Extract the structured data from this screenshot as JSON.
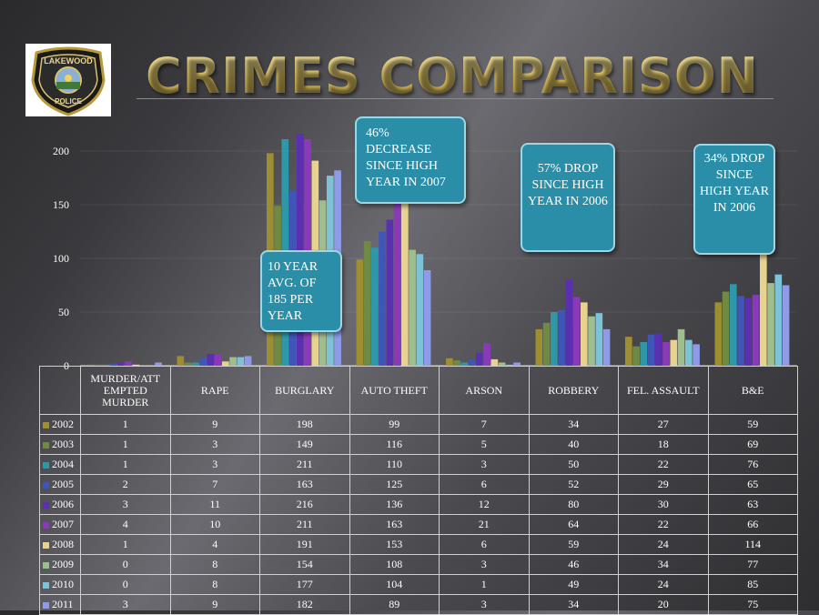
{
  "title": "CRIMES COMPARISON",
  "logo": {
    "top_text": "LAKEWOOD",
    "bottom_text": "POLICE"
  },
  "callouts": [
    "10 YEAR AVG. OF 185 PER YEAR",
    "46% DECREASE SINCE HIGH YEAR IN 2007",
    "57% DROP SINCE HIGH YEAR IN 2006",
    "34% DROP SINCE HIGH YEAR IN 2006"
  ],
  "chart_data": {
    "type": "bar",
    "title": "CRIMES COMPARISON",
    "xlabel": "",
    "ylabel": "",
    "ylim": [
      0,
      220
    ],
    "yticks": [
      0,
      50,
      100,
      150,
      200
    ],
    "grid": true,
    "legend": "data-table",
    "categories": [
      "MURDER/ATTEMPTED MURDER",
      "RAPE",
      "BURGLARY",
      "AUTO THEFT",
      "ARSON",
      "ROBBERY",
      "FEL. ASSAULT",
      "B&E"
    ],
    "series": [
      {
        "name": "2002",
        "color": "#9e8e32",
        "values": [
          1,
          9,
          198,
          99,
          7,
          34,
          27,
          59
        ]
      },
      {
        "name": "2003",
        "color": "#6f8a45",
        "values": [
          1,
          3,
          149,
          116,
          5,
          40,
          18,
          69
        ]
      },
      {
        "name": "2004",
        "color": "#2f98a8",
        "values": [
          1,
          3,
          211,
          110,
          3,
          50,
          22,
          76
        ]
      },
      {
        "name": "2005",
        "color": "#3f56b8",
        "values": [
          2,
          7,
          163,
          125,
          6,
          52,
          29,
          65
        ]
      },
      {
        "name": "2006",
        "color": "#5a2fb0",
        "values": [
          3,
          11,
          216,
          136,
          12,
          80,
          30,
          63
        ]
      },
      {
        "name": "2007",
        "color": "#8a3ab8",
        "values": [
          4,
          10,
          211,
          163,
          21,
          64,
          22,
          66
        ]
      },
      {
        "name": "2008",
        "color": "#e7d28e",
        "values": [
          1,
          4,
          191,
          153,
          6,
          59,
          24,
          114
        ]
      },
      {
        "name": "2009",
        "color": "#9fbe8e",
        "values": [
          0,
          8,
          154,
          108,
          3,
          46,
          34,
          77
        ]
      },
      {
        "name": "2010",
        "color": "#7cc2d8",
        "values": [
          0,
          8,
          177,
          104,
          1,
          49,
          24,
          85
        ]
      },
      {
        "name": "2011",
        "color": "#8f9ae8",
        "values": [
          3,
          9,
          182,
          89,
          3,
          34,
          20,
          75
        ]
      }
    ]
  }
}
